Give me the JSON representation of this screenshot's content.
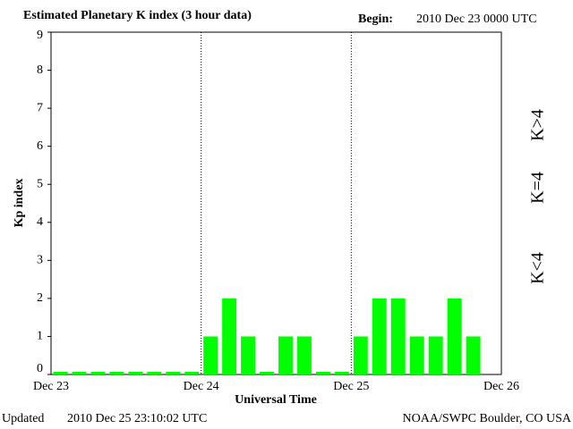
{
  "chart_data": {
    "type": "bar",
    "title": "Estimated Planetary K index (3 hour data)",
    "begin_label": "Begin:",
    "begin": "2010 Dec 23 0000 UTC",
    "y_label": "Kp index",
    "x_label": "Universal Time",
    "updated_label": "Updated",
    "updated": "2010 Dec 25 23:10:02 UTC",
    "credit": "NOAA/SWPC Boulder, CO USA",
    "values": [
      0,
      0,
      0,
      0,
      0,
      0,
      0,
      0,
      1,
      2,
      1,
      0,
      1,
      1,
      0,
      0,
      1,
      2,
      2,
      1,
      1,
      2,
      1,
      null
    ],
    "color": "#00ff00",
    "xlim": [
      0,
      24
    ],
    "xticks": [
      {
        "value": 0,
        "label": "Dec 23"
      },
      {
        "value": 8,
        "label": "Dec 24"
      },
      {
        "value": 16,
        "label": "Dec 25"
      },
      {
        "value": 24,
        "label": "Dec 26"
      }
    ],
    "ylim": [
      0,
      9
    ],
    "yticks": [
      0,
      1,
      2,
      3,
      4,
      5,
      6,
      7,
      8,
      9
    ],
    "legend": [
      {
        "label": "K<4",
        "color": "#00ee00"
      },
      {
        "label": "K=4",
        "color": "#ffcc00"
      },
      {
        "label": "K>4",
        "color": "#ff2200"
      }
    ]
  }
}
